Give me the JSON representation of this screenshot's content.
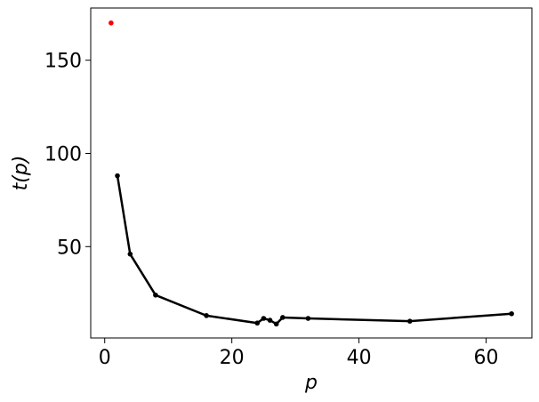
{
  "chart_data": {
    "type": "line",
    "xlabel": "p",
    "ylabel": "t(p)",
    "xlim": [
      -2.2,
      67.2
    ],
    "ylim": [
      1,
      178
    ],
    "xticks": [
      0,
      20,
      40,
      60
    ],
    "yticks": [
      50,
      100,
      150
    ],
    "grid": false,
    "series": [
      {
        "color": "#000000",
        "marker": "dot",
        "x": [
          2,
          4,
          8,
          16,
          24,
          25,
          26,
          27,
          28,
          32,
          48,
          64
        ],
        "y": [
          88,
          46,
          24,
          13,
          9,
          11.5,
          10.5,
          8.5,
          12,
          11.5,
          10,
          14
        ]
      },
      {
        "color": "#ff0000",
        "marker": "dot",
        "line": false,
        "x": [
          1
        ],
        "y": [
          170
        ]
      }
    ]
  }
}
